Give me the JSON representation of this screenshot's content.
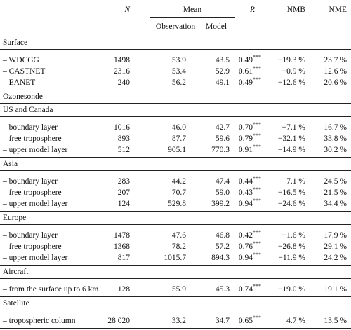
{
  "table": {
    "header": {
      "label": "",
      "n": "N",
      "mean": "Mean",
      "observation": "Observation",
      "model": "Model",
      "r": "R",
      "nmb": "NMB",
      "nme": "NME"
    },
    "sections": [
      {
        "title": "Surface",
        "rows": [
          {
            "label": "– WDCGG",
            "n": "1498",
            "observation": "53.9",
            "model": "43.5",
            "r": "0.49",
            "sig": "***",
            "nmb": "−19.3 %",
            "nme": "23.7 %"
          },
          {
            "label": "– CASTNET",
            "n": "2316",
            "observation": "53.4",
            "model": "52.9",
            "r": "0.61",
            "sig": "***",
            "nmb": "−0.9 %",
            "nme": "12.6 %"
          },
          {
            "label": "– EANET",
            "n": "240",
            "observation": "56.2",
            "model": "49.1",
            "r": "0.49",
            "sig": "***",
            "nmb": "−12.6 %",
            "nme": "20.6 %"
          }
        ]
      },
      {
        "title": "Ozonesonde",
        "rows": []
      },
      {
        "title": "US and Canada",
        "rows": [
          {
            "label": "– boundary layer",
            "n": "1016",
            "observation": "46.0",
            "model": "42.7",
            "r": "0.70",
            "sig": "***",
            "nmb": "−7.1 %",
            "nme": "16.7 %"
          },
          {
            "label": "– free troposphere",
            "n": "893",
            "observation": "87.7",
            "model": "59.6",
            "r": "0.79",
            "sig": "***",
            "nmb": "−32.1 %",
            "nme": "33.8 %"
          },
          {
            "label": "– upper model layer",
            "n": "512",
            "observation": "905.1",
            "model": "770.3",
            "r": "0.91",
            "sig": "***",
            "nmb": "−14.9 %",
            "nme": "30.2 %"
          }
        ]
      },
      {
        "title": "Asia",
        "rows": [
          {
            "label": "– boundary layer",
            "n": "283",
            "observation": "44.2",
            "model": "47.4",
            "r": "0.44",
            "sig": "***",
            "nmb": "7.1 %",
            "nme": "24.5 %"
          },
          {
            "label": "– free troposphere",
            "n": "207",
            "observation": "70.7",
            "model": "59.0",
            "r": "0.43",
            "sig": "***",
            "nmb": "−16.5 %",
            "nme": "21.5 %"
          },
          {
            "label": "– upper model layer",
            "n": "124",
            "observation": "529.8",
            "model": "399.2",
            "r": "0.94",
            "sig": "***",
            "nmb": "−24.6 %",
            "nme": "34.4 %"
          }
        ]
      },
      {
        "title": "Europe",
        "rows": [
          {
            "label": "– boundary layer",
            "n": "1478",
            "observation": "47.6",
            "model": "46.8",
            "r": "0.42",
            "sig": "***",
            "nmb": "−1.6 %",
            "nme": "17.9 %"
          },
          {
            "label": "– free troposphere",
            "n": "1368",
            "observation": "78.2",
            "model": "57.2",
            "r": "0.76",
            "sig": "***",
            "nmb": "−26.8 %",
            "nme": "29.1 %"
          },
          {
            "label": "– upper model layer",
            "n": "817",
            "observation": "1015.7",
            "model": "894.3",
            "r": "0.94",
            "sig": "***",
            "nmb": "−11.9 %",
            "nme": "24.2 %"
          }
        ]
      },
      {
        "title": "Aircraft",
        "rows": [
          {
            "label": "– from the surface up to 6 km",
            "n": "128",
            "observation": "55.9",
            "model": "45.3",
            "r": "0.74",
            "sig": "***",
            "nmb": "−19.0 %",
            "nme": "19.1 %"
          }
        ]
      },
      {
        "title": "Satellite",
        "rows": [
          {
            "label": "– tropospheric column",
            "n": "28 020",
            "observation": "33.2",
            "model": "34.7",
            "r": "0.65",
            "sig": "***",
            "nmb": "4.7 %",
            "nme": "13.5 %"
          }
        ]
      }
    ]
  }
}
